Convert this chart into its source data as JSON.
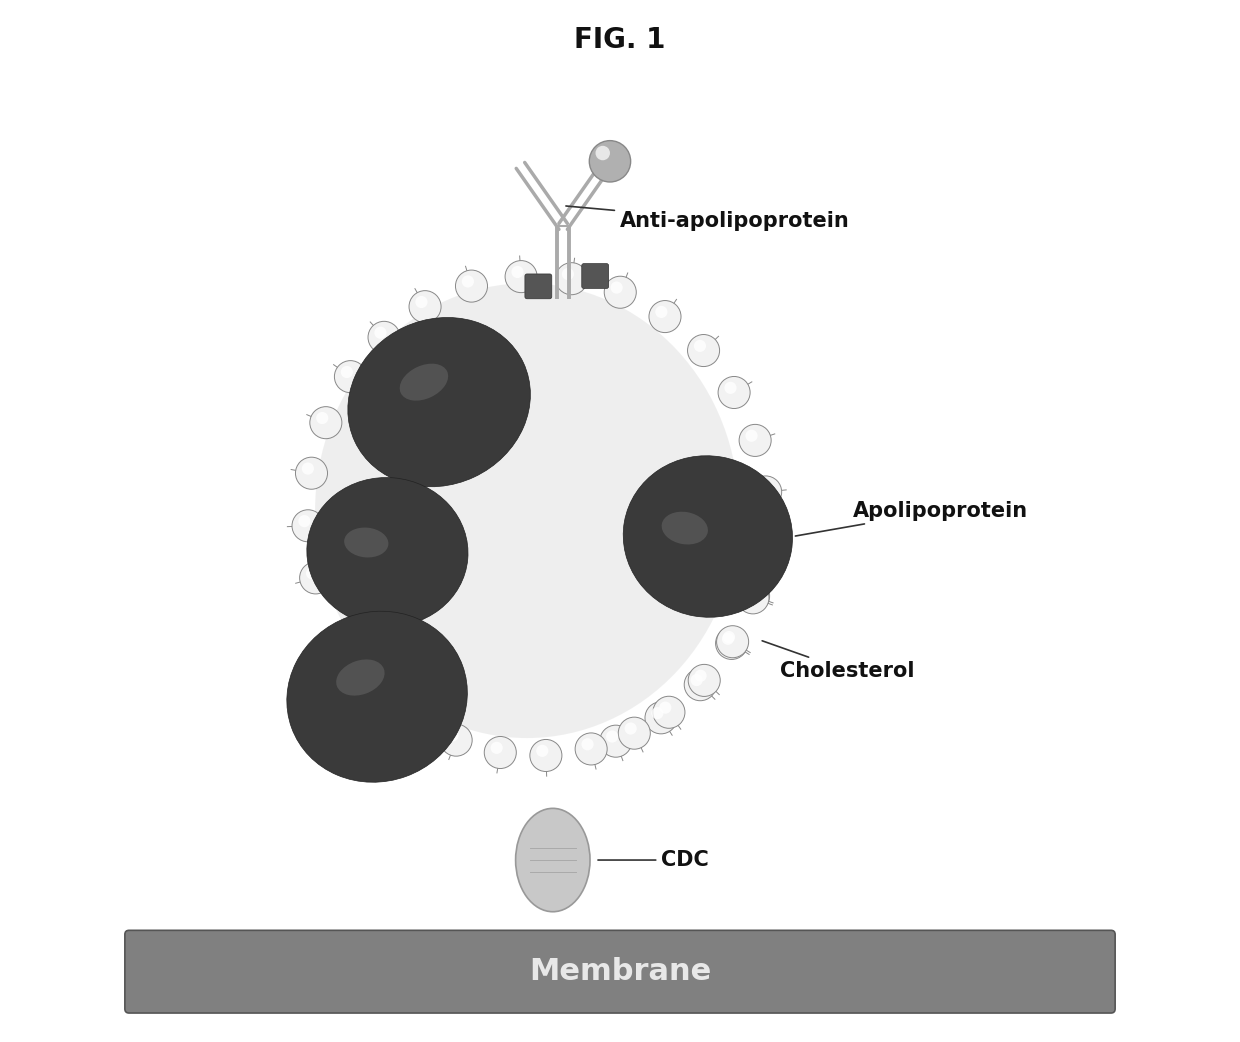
{
  "title": "FIG. 1",
  "background_color": "#f5f5f5",
  "fig_background": "#ffffff",
  "membrane_color": "#808080",
  "membrane_text": "Membrane",
  "membrane_text_color": "#e8e8e8",
  "cdc_color": "#c0c0c0",
  "cdc_label": "CDC",
  "cholesterol_label": "Cholesterol",
  "apolipoprotein_label": "Apolipoprotein",
  "anti_apolipoprotein_label": "Anti-apolipoprotein",
  "lp_body_color": "#e0e0e0",
  "apoprotein_color": "#404040",
  "bead_fill": "#f0f0f0",
  "bead_edge": "#888888",
  "antibody_color": "#999999",
  "label_color": "#111111",
  "title_fontsize": 20,
  "label_fontsize": 15
}
